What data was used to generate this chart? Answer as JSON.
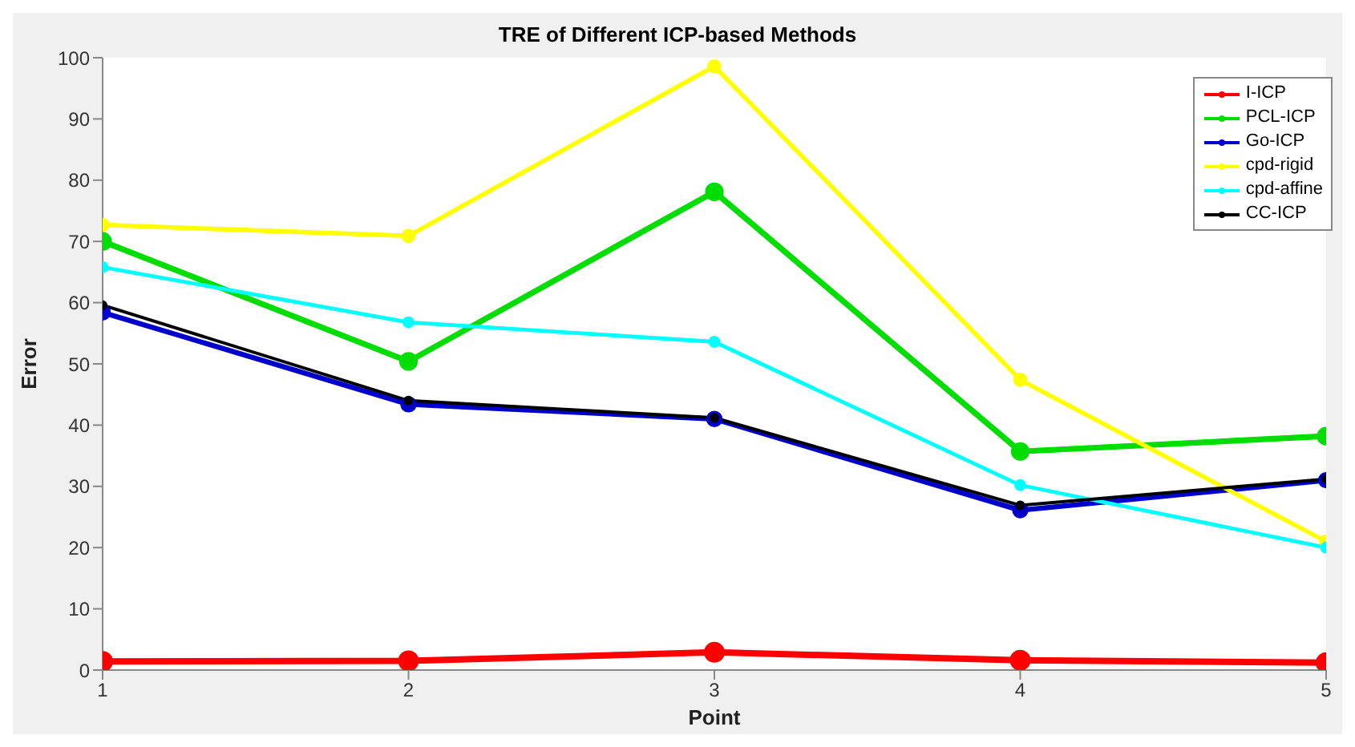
{
  "chart_data": {
    "type": "line",
    "title": "TRE of Different ICP-based Methods",
    "xlabel": "Point",
    "ylabel": "Error",
    "x": [
      1,
      2,
      3,
      4,
      5
    ],
    "xlim": [
      1,
      5
    ],
    "xticks": [
      1,
      2,
      3,
      4,
      5
    ],
    "ylim": [
      0,
      100
    ],
    "yticks": [
      0,
      10,
      20,
      30,
      40,
      50,
      60,
      70,
      80,
      90,
      100
    ],
    "grid": false,
    "legend": "top right",
    "marker": "circle",
    "line_style": "solid",
    "series": [
      {
        "name": "I-ICP",
        "color": "#ff0000",
        "values": [
          1.4,
          1.5,
          2.9,
          1.6,
          1.2
        ]
      },
      {
        "name": "PCL-ICP",
        "color": "#00dd00",
        "values": [
          70,
          50.4,
          78.1,
          35.7,
          38.2
        ]
      },
      {
        "name": "Go-ICP",
        "color": "#0000cc",
        "values": [
          58.4,
          43.4,
          41,
          26.1,
          31
        ]
      },
      {
        "name": "cpd-rigid",
        "color": "#ffff00",
        "values": [
          72.7,
          70.9,
          98.6,
          47.4,
          21
        ]
      },
      {
        "name": "cpd-affine",
        "color": "#00ffff",
        "values": [
          65.8,
          56.8,
          53.6,
          30.2,
          20
        ]
      },
      {
        "name": "CC-ICP",
        "color": "#000000",
        "values": [
          59.6,
          44,
          41.2,
          26.9,
          31.2
        ]
      }
    ]
  }
}
